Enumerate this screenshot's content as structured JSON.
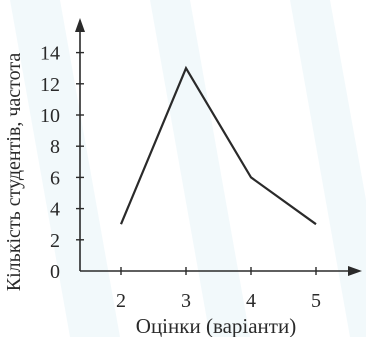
{
  "chart_data": {
    "type": "line",
    "x": [
      2,
      3,
      4,
      5
    ],
    "values": [
      3,
      13,
      6,
      3
    ],
    "xlabel": "Оцінки (варіанти)",
    "ylabel": "Кількість студентів, частота",
    "xlim": [
      1.4,
      5.5
    ],
    "ylim": [
      0,
      15.5
    ],
    "x_ticks": [
      "2",
      "3",
      "4",
      "5"
    ],
    "y_ticks": [
      "0",
      "2",
      "4",
      "6",
      "8",
      "10",
      "12",
      "14"
    ],
    "grid": false,
    "line_color": "#2a2a2a",
    "axis_color": "#2a2a2a"
  }
}
